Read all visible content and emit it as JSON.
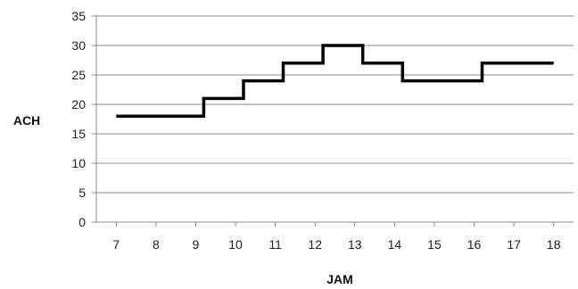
{
  "chart_data": {
    "type": "line",
    "title": "",
    "xlabel": "JAM",
    "ylabel": "ACH",
    "x_ticks": [
      7,
      8,
      9,
      10,
      11,
      12,
      13,
      14,
      15,
      16,
      17,
      18
    ],
    "y_ticks": [
      0,
      5,
      10,
      15,
      20,
      25,
      30,
      35
    ],
    "xlim": [
      6.5,
      18.5
    ],
    "ylim": [
      0,
      35
    ],
    "grid": "horizontal",
    "legend": "none",
    "step": true,
    "series": [
      {
        "color": "#000000",
        "x": [
          7,
          9.2,
          9.2,
          10.2,
          10.2,
          11.2,
          11.2,
          12.2,
          12.2,
          13.2,
          13.2,
          14.2,
          14.2,
          16.2,
          16.2,
          18
        ],
        "values": [
          18,
          18,
          21,
          21,
          24,
          24,
          27,
          27,
          30,
          30,
          27,
          27,
          24,
          24,
          27,
          27
        ]
      }
    ]
  }
}
